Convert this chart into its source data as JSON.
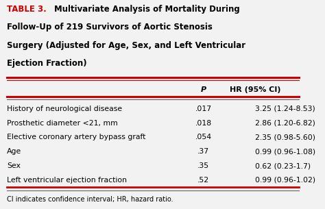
{
  "title_prefix": "TABLE 3.",
  "title_line1_rest": "Multivariate Analysis of Mortality During",
  "title_lines": [
    "Follow-Up of 219 Survivors of Aortic Stenosis",
    "Surgery (Adjusted for Age, Sex, and Left Ventricular",
    "Ejection Fraction)"
  ],
  "col_headers": [
    "P",
    "HR (95% CI)"
  ],
  "rows": [
    [
      "History of neurological disease",
      ".017",
      "3.25 (1.24-8.53)"
    ],
    [
      "Prosthetic diameter <21, mm",
      ".018",
      "2.86 (1.20-6.82)"
    ],
    [
      "Elective coronary artery bypass graft",
      ".054",
      "2.35 (0.98-5.60)"
    ],
    [
      "Age",
      ".37",
      "0.99 (0.96-1.08)"
    ],
    [
      "Sex",
      ".35",
      "0.62 (0.23-1.7)"
    ],
    [
      "Left ventricular ejection fraction",
      ".52",
      "0.99 (0.96-1.02)"
    ]
  ],
  "footnote": "CI indicates confidence interval; HR, hazard ratio.",
  "bg_color": "#f2f2f2",
  "title_color": "#cc0000",
  "line_color_red": "#cc0000",
  "line_color_dark": "#555555"
}
